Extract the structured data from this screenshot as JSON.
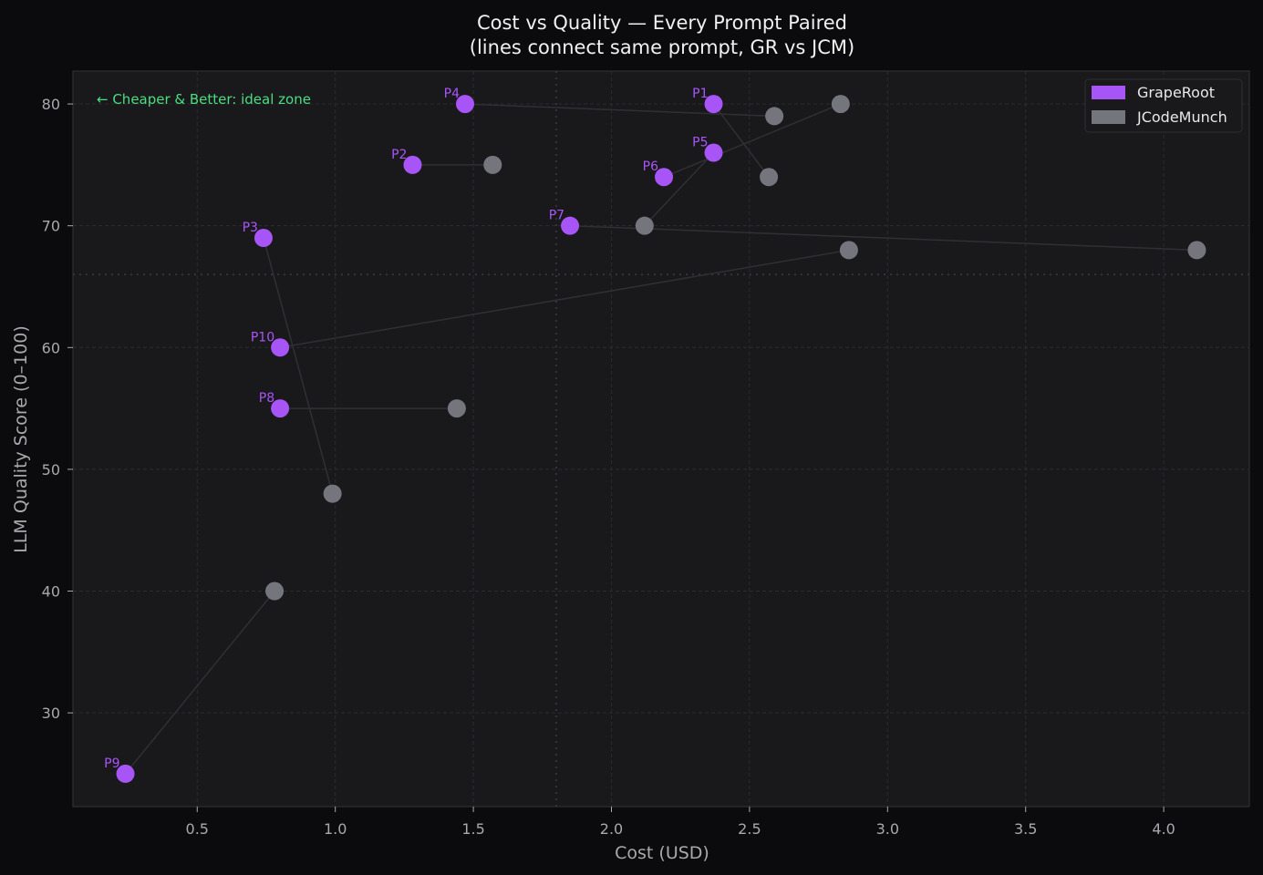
{
  "chart_data": {
    "type": "scatter",
    "title": "Cost vs Quality — Every Prompt Paired",
    "subtitle": "(lines connect same prompt, GR vs JCM)",
    "xlabel": "Cost (USD)",
    "ylabel": "LLM Quality Score (0–100)",
    "xlim": [
      0.05,
      4.31
    ],
    "ylim": [
      22.3,
      82.7
    ],
    "xticks": [
      0.5,
      1.0,
      1.5,
      2.0,
      2.5,
      3.0,
      3.5,
      4.0
    ],
    "xtick_labels": [
      "0.5",
      "1.0",
      "1.5",
      "2.0",
      "2.5",
      "3.0",
      "3.5",
      "4.0"
    ],
    "yticks": [
      30,
      40,
      50,
      60,
      70,
      80
    ],
    "ytick_labels": [
      "30",
      "40",
      "50",
      "60",
      "70",
      "80"
    ],
    "grid": true,
    "legend_position": "upper right",
    "reference_lines": {
      "x": 1.8,
      "y": 66.0
    },
    "annotation": "← Cheaper & Better: ideal zone",
    "series": [
      {
        "name": "GrapeRoot",
        "color": "#a855f7",
        "points": [
          {
            "label": "P1",
            "x": 2.37,
            "y": 80
          },
          {
            "label": "P2",
            "x": 1.28,
            "y": 75
          },
          {
            "label": "P3",
            "x": 0.74,
            "y": 69
          },
          {
            "label": "P4",
            "x": 1.47,
            "y": 80
          },
          {
            "label": "P5",
            "x": 2.37,
            "y": 76
          },
          {
            "label": "P6",
            "x": 2.19,
            "y": 74
          },
          {
            "label": "P7",
            "x": 1.85,
            "y": 70
          },
          {
            "label": "P8",
            "x": 0.8,
            "y": 55
          },
          {
            "label": "P9",
            "x": 0.24,
            "y": 25
          },
          {
            "label": "P10",
            "x": 0.8,
            "y": 60
          }
        ]
      },
      {
        "name": "JCodeMunch",
        "color": "#75757d",
        "points": [
          {
            "label": "P1",
            "x": 2.57,
            "y": 74
          },
          {
            "label": "P2",
            "x": 1.57,
            "y": 75
          },
          {
            "label": "P3",
            "x": 0.99,
            "y": 48
          },
          {
            "label": "P4",
            "x": 2.59,
            "y": 79
          },
          {
            "label": "P5",
            "x": 2.12,
            "y": 70
          },
          {
            "label": "P6",
            "x": 2.83,
            "y": 80
          },
          {
            "label": "P7",
            "x": 4.12,
            "y": 68
          },
          {
            "label": "P8",
            "x": 1.44,
            "y": 55
          },
          {
            "label": "P9",
            "x": 0.78,
            "y": 40
          },
          {
            "label": "P10",
            "x": 2.86,
            "y": 68
          }
        ]
      }
    ]
  },
  "colors": {
    "background": "#0b0b0d",
    "plot_background": "#19191c",
    "grid": "#2c2c30",
    "pair_line": "#303034",
    "accent_annotation": "#4ade80"
  }
}
